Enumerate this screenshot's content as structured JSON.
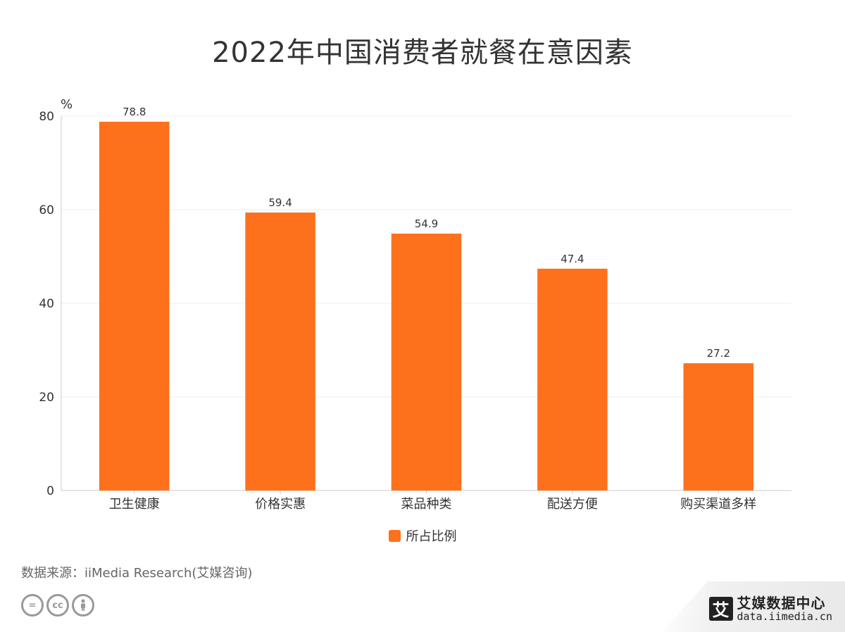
{
  "title": "2022年中国消费者就餐在意因素",
  "colors": {
    "bar": "#fd711d",
    "grid": "#ececec",
    "axis": "#cccccc",
    "text": "#333333"
  },
  "chart_data": {
    "type": "bar",
    "title": "2022年中国消费者就餐在意因素",
    "ylabel": "%",
    "xlabel": "",
    "ylim": [
      0,
      80
    ],
    "yticks": [
      0,
      20,
      40,
      60,
      80
    ],
    "grid": true,
    "legend_position": "bottom",
    "categories": [
      "卫生健康",
      "价格实惠",
      "菜品种类",
      "配送方便",
      "购买渠道多样"
    ],
    "series": [
      {
        "name": "所占比例",
        "values": [
          78.8,
          59.4,
          54.9,
          47.4,
          27.2
        ]
      }
    ]
  },
  "legend": {
    "label": "所占比例"
  },
  "source": "数据来源：iiMedia Research(艾媒咨询)",
  "license_icons": [
    "equals-icon",
    "cc-icon",
    "person-icon"
  ],
  "brand": {
    "logo": "艾",
    "name": "艾媒数据中心",
    "url": "data.iimedia.cn"
  }
}
